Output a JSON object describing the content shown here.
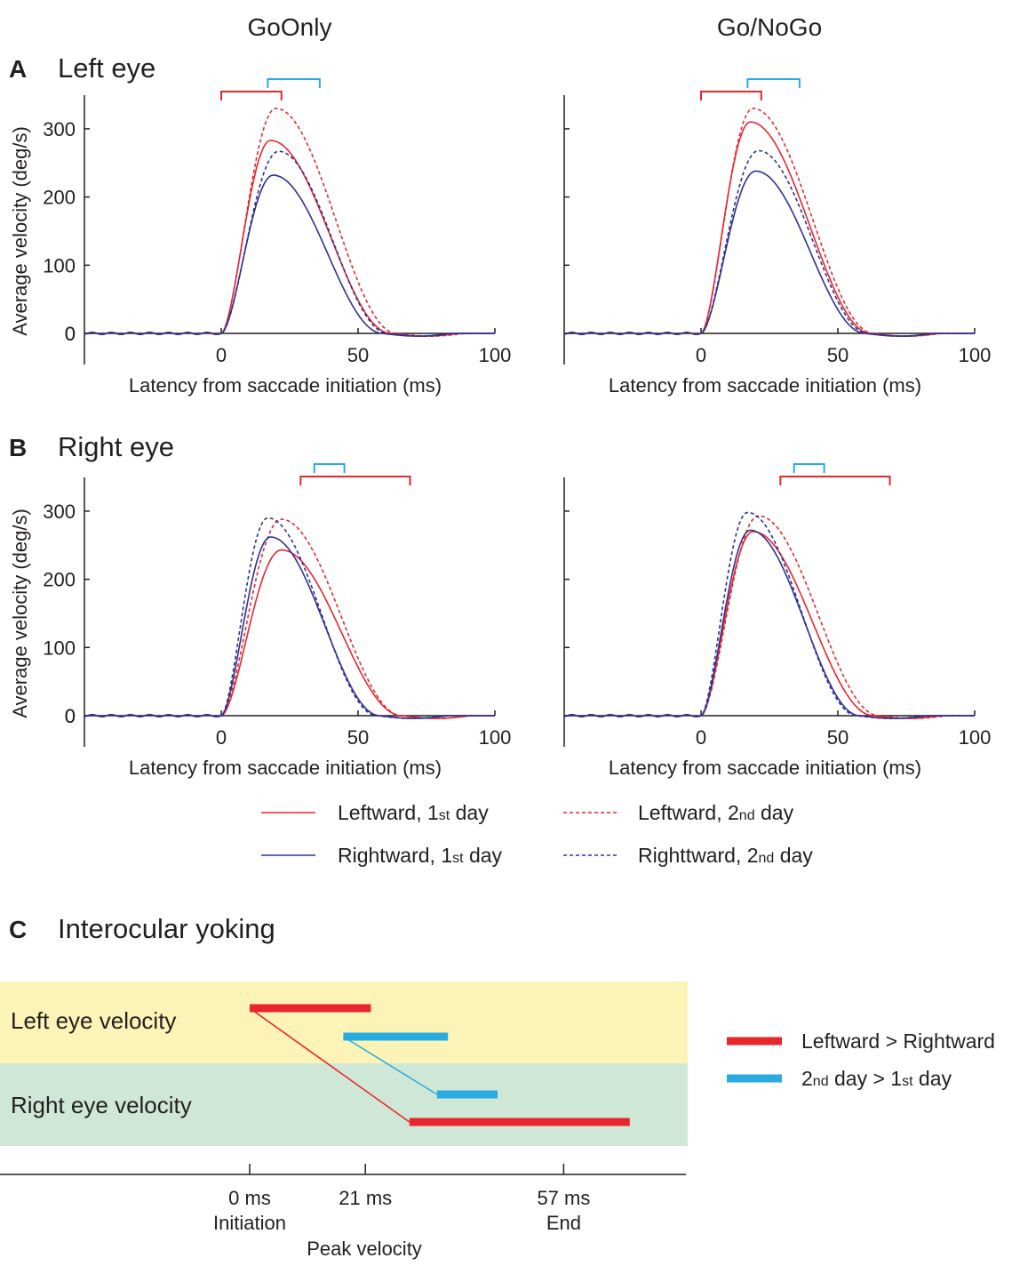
{
  "column_titles": [
    "GoOnly",
    "Go/NoGo"
  ],
  "panels": {
    "A": {
      "letter": "A",
      "title": "Left eye"
    },
    "B": {
      "letter": "B",
      "title": "Right eye"
    },
    "C": {
      "letter": "C",
      "title": "Interocular yoking"
    }
  },
  "colors": {
    "leftward": "#e8262d",
    "rightward": "#2e3192",
    "second_day_bracket": "#29abe2",
    "band_left_eye": "#fcf4b6",
    "band_right_eye": "#cfe7d6"
  },
  "legend": {
    "items": [
      {
        "key": "leftward_day1",
        "pre": "Leftward, 1",
        "sup": "st",
        "post": " day",
        "color": "#e8262d",
        "dash": false
      },
      {
        "key": "leftward_day2",
        "pre": "Leftward, 2",
        "sup": "nd",
        "post": " day",
        "color": "#e8262d",
        "dash": true
      },
      {
        "key": "rightward_day1",
        "pre": "Rightward, 1",
        "sup": "st",
        "post": " day",
        "color": "#2e3192",
        "dash": false
      },
      {
        "key": "rightward_day2",
        "pre": "Righttward, 2",
        "sup": "nd",
        "post": " day",
        "color": "#2e3192",
        "dash": true
      }
    ]
  },
  "chart_data": [
    {
      "id": "A-GoOnly",
      "type": "line",
      "panel": "A",
      "condition": "GoOnly",
      "xlabel": "Latency from saccade initiation (ms)",
      "ylabel": "Average velocity (deg/s)",
      "xlim": [
        -50,
        100
      ],
      "ylim": [
        0,
        350
      ],
      "xticks": [
        0,
        50,
        100
      ],
      "yticks": [
        0,
        100,
        200,
        300
      ],
      "brackets": [
        {
          "color": "red",
          "x": [
            0,
            22
          ]
        },
        {
          "color": "cyan",
          "x": [
            17,
            36
          ]
        }
      ],
      "series": [
        {
          "key": "leftward_day1",
          "peak": 283,
          "peak_x": 18
        },
        {
          "key": "leftward_day2",
          "peak": 330,
          "peak_x": 20
        },
        {
          "key": "rightward_day1",
          "peak": 232,
          "peak_x": 19
        },
        {
          "key": "rightward_day2",
          "peak": 267,
          "peak_x": 21
        }
      ]
    },
    {
      "id": "A-GoNoGo",
      "type": "line",
      "panel": "A",
      "condition": "Go/NoGo",
      "xlabel": "Latency from saccade initiation (ms)",
      "ylabel": "",
      "xlim": [
        -50,
        100
      ],
      "ylim": [
        0,
        350
      ],
      "xticks": [
        0,
        50,
        100
      ],
      "yticks": [
        0,
        100,
        200,
        300
      ],
      "brackets": [
        {
          "color": "red",
          "x": [
            0,
            22
          ]
        },
        {
          "color": "cyan",
          "x": [
            17,
            36
          ]
        }
      ],
      "series": [
        {
          "key": "leftward_day1",
          "peak": 310,
          "peak_x": 18
        },
        {
          "key": "leftward_day2",
          "peak": 330,
          "peak_x": 19
        },
        {
          "key": "rightward_day1",
          "peak": 238,
          "peak_x": 20
        },
        {
          "key": "rightward_day2",
          "peak": 268,
          "peak_x": 21
        }
      ]
    },
    {
      "id": "B-GoOnly",
      "type": "line",
      "panel": "B",
      "condition": "GoOnly",
      "xlabel": "Latency from saccade initiation (ms)",
      "ylabel": "Average velocity (deg/s)",
      "xlim": [
        -50,
        100
      ],
      "ylim": [
        0,
        350
      ],
      "xticks": [
        0,
        50,
        100
      ],
      "yticks": [
        0,
        100,
        200,
        300
      ],
      "brackets": [
        {
          "color": "cyan",
          "x": [
            34,
            45
          ]
        },
        {
          "color": "red",
          "x": [
            29,
            69
          ]
        }
      ],
      "series": [
        {
          "key": "leftward_day1",
          "peak": 243,
          "peak_x": 22
        },
        {
          "key": "leftward_day2",
          "peak": 288,
          "peak_x": 22
        },
        {
          "key": "rightward_day1",
          "peak": 262,
          "peak_x": 18
        },
        {
          "key": "rightward_day2",
          "peak": 290,
          "peak_x": 17
        }
      ]
    },
    {
      "id": "B-GoNoGo",
      "type": "line",
      "panel": "B",
      "condition": "Go/NoGo",
      "xlabel": "Latency from saccade initiation (ms)",
      "ylabel": "",
      "xlim": [
        -50,
        100
      ],
      "ylim": [
        0,
        350
      ],
      "xticks": [
        0,
        50,
        100
      ],
      "yticks": [
        0,
        100,
        200,
        300
      ],
      "brackets": [
        {
          "color": "cyan",
          "x": [
            34,
            45
          ]
        },
        {
          "color": "red",
          "x": [
            29,
            69
          ]
        }
      ],
      "series": [
        {
          "key": "leftward_day1",
          "peak": 270,
          "peak_x": 19
        },
        {
          "key": "leftward_day2",
          "peak": 293,
          "peak_x": 21
        },
        {
          "key": "rightward_day1",
          "peak": 272,
          "peak_x": 18
        },
        {
          "key": "rightward_day2",
          "peak": 298,
          "peak_x": 17
        }
      ]
    },
    {
      "id": "C",
      "type": "timeline",
      "panel": "C",
      "rows": [
        "Left eye velocity",
        "Right eye velocity"
      ],
      "ticks": [
        {
          "x": 0,
          "label": "0 ms",
          "sublabel": "Initiation"
        },
        {
          "x": 21,
          "label": "21 ms",
          "sublabel": ""
        },
        {
          "x": 57,
          "label": "57 ms",
          "sublabel": "End"
        }
      ],
      "axis_note": "Peak velocity",
      "segments": [
        {
          "row": "Left eye velocity",
          "kind": "leftward",
          "x": [
            0,
            22
          ]
        },
        {
          "row": "Left eye velocity",
          "kind": "second_day",
          "x": [
            17,
            36
          ]
        },
        {
          "row": "Right eye velocity",
          "kind": "second_day",
          "x": [
            34,
            45
          ]
        },
        {
          "row": "Right eye velocity",
          "kind": "leftward",
          "x": [
            29,
            69
          ]
        }
      ],
      "legend": [
        {
          "kind": "leftward",
          "label": "Leftward > Rightward"
        },
        {
          "kind": "second_day",
          "pre": "2",
          "sup1": "nd",
          "mid": " day > 1",
          "sup2": "st",
          "post": " day"
        }
      ]
    }
  ]
}
